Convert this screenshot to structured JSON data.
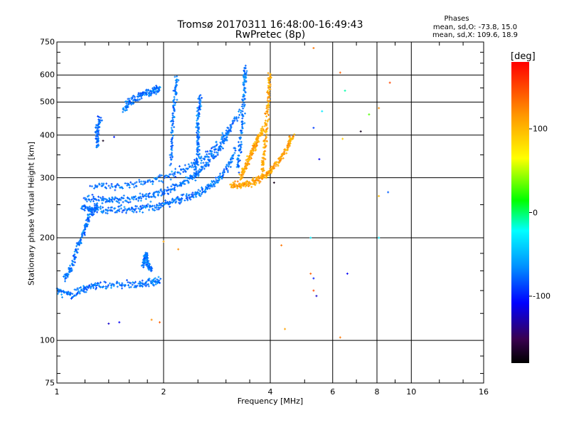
{
  "chart_data": {
    "type": "scatter",
    "title": "Tromsø 20170311 16:48:00-16:49:43",
    "subtitle": "RwPretec (8p)",
    "xlabel": "Frequency [MHz]",
    "ylabel": "Stationary phase Virtual Height [km]",
    "xscale": "log",
    "yscale": "log",
    "xlim": [
      1,
      16
    ],
    "ylim": [
      75,
      750
    ],
    "xticks": [
      1,
      2,
      4,
      6,
      8,
      10,
      16
    ],
    "xtick_labels": [
      "1",
      "2",
      "4",
      "6",
      "8",
      "10",
      "16"
    ],
    "yticks": [
      75,
      100,
      200,
      300,
      400,
      500,
      600,
      750
    ],
    "ytick_labels": [
      "75",
      "100",
      "200",
      "300",
      "400",
      "500",
      "600",
      "750"
    ],
    "minor_xticks": [
      1.2,
      1.4,
      1.6,
      1.8,
      2.5,
      3,
      3.5,
      5,
      7,
      9,
      12,
      14
    ],
    "minor_yticks": [
      80,
      90,
      120,
      140,
      160,
      180,
      250,
      350,
      450,
      550,
      650,
      700
    ],
    "grid": true,
    "colorbar": {
      "label": "[deg]",
      "range": [
        -180,
        180
      ],
      "ticks": [
        100,
        0,
        -100
      ],
      "tick_labels": [
        "100",
        "0",
        "-100"
      ],
      "colormap": "rainbow"
    },
    "annotations": {
      "phase_title": "Phases",
      "phase_o": "mean, sd,O: -73.8, 15.0",
      "phase_x": "mean, sd,X: 109.6, 18.9"
    },
    "series": [
      {
        "mode": "O",
        "phase_mean": -73.8,
        "phase_sd": 15.0,
        "traces": [
          {
            "x": [
              1.0,
              1.1,
              1.2,
              1.3,
              1.5,
              1.7,
              1.85,
              1.95
            ],
            "y": [
              140,
              136,
              142,
              145,
              145,
              146,
              148,
              149
            ]
          },
          {
            "x": [
              1.05,
              1.1,
              1.15,
              1.2,
              1.25,
              1.3
            ],
            "y": [
              150,
              165,
              190,
              215,
              235,
              250
            ]
          },
          {
            "x": [
              1.18,
              1.25,
              1.4,
              1.6,
              1.8,
              2.0,
              2.2,
              2.4,
              2.6,
              2.8,
              3.0,
              3.2
            ],
            "y": [
              246,
              242,
              240,
              242,
              245,
              250,
              258,
              265,
              275,
              290,
              315,
              360
            ]
          },
          {
            "x": [
              1.2,
              1.35,
              1.5,
              1.7,
              1.9,
              2.1,
              2.3,
              2.5,
              2.7,
              2.9,
              3.1
            ],
            "y": [
              262,
              258,
              258,
              262,
              268,
              278,
              292,
              310,
              335,
              370,
              420
            ]
          },
          {
            "x": [
              1.25,
              1.5,
              1.8,
              2.1,
              2.4,
              2.7,
              3.0,
              3.3
            ],
            "y": [
              285,
              282,
              290,
              305,
              325,
              355,
              400,
              470
            ]
          },
          {
            "x": [
              2.45,
              2.5,
              2.5,
              2.5,
              2.55
            ],
            "y": [
              300,
              350,
              400,
              460,
              520
            ]
          },
          {
            "x": [
              2.1,
              2.12,
              2.15,
              2.18
            ],
            "y": [
              330,
              420,
              510,
              590
            ]
          },
          {
            "x": [
              3.25,
              3.3,
              3.35,
              3.38,
              3.4
            ],
            "y": [
              320,
              380,
              460,
              560,
              640
            ]
          },
          {
            "x": [
              1.55,
              1.6,
              1.7,
              1.8,
              1.88,
              1.95
            ],
            "y": [
              470,
              500,
              520,
              530,
              540,
              550
            ]
          },
          {
            "x": [
              1.3,
              1.3,
              1.32
            ],
            "y": [
              370,
              410,
              450
            ]
          },
          {
            "x": [
              1.75,
              1.78,
              1.8,
              1.85
            ],
            "y": [
              165,
              180,
              170,
              160
            ]
          }
        ]
      },
      {
        "mode": "X",
        "phase_mean": 109.6,
        "phase_sd": 18.9,
        "traces": [
          {
            "x": [
              3.1,
              3.3,
              3.5,
              3.7,
              3.9,
              4.1,
              4.3,
              4.5,
              4.65
            ],
            "y": [
              285,
              285,
              290,
              296,
              305,
              320,
              345,
              375,
              400
            ]
          },
          {
            "x": [
              3.8,
              3.85,
              3.9,
              3.95,
              4.0
            ],
            "y": [
              310,
              360,
              430,
              520,
              610
            ]
          },
          {
            "x": [
              3.3,
              3.4,
              3.5,
              3.6,
              3.7,
              3.8
            ],
            "y": [
              300,
              320,
              345,
              370,
              390,
              420
            ]
          }
        ]
      }
    ],
    "outliers": [
      {
        "x": 5.3,
        "y": 720,
        "phase": 130
      },
      {
        "x": 6.3,
        "y": 610,
        "phase": 140
      },
      {
        "x": 8.7,
        "y": 570,
        "phase": 150
      },
      {
        "x": 5.3,
        "y": 420,
        "phase": -90
      },
      {
        "x": 6.5,
        "y": 540,
        "phase": -10
      },
      {
        "x": 7.2,
        "y": 410,
        "phase": -170
      },
      {
        "x": 7.6,
        "y": 460,
        "phase": 30
      },
      {
        "x": 5.5,
        "y": 340,
        "phase": -110
      },
      {
        "x": 6.4,
        "y": 390,
        "phase": 90
      },
      {
        "x": 8.1,
        "y": 480,
        "phase": 120
      },
      {
        "x": 8.1,
        "y": 265,
        "phase": 100
      },
      {
        "x": 8.6,
        "y": 272,
        "phase": -80
      },
      {
        "x": 4.3,
        "y": 190,
        "phase": 130
      },
      {
        "x": 5.2,
        "y": 200,
        "phase": -30
      },
      {
        "x": 5.2,
        "y": 157,
        "phase": 140
      },
      {
        "x": 5.3,
        "y": 152,
        "phase": -100
      },
      {
        "x": 6.6,
        "y": 157,
        "phase": -110
      },
      {
        "x": 5.3,
        "y": 140,
        "phase": 150
      },
      {
        "x": 5.4,
        "y": 135,
        "phase": -120
      },
      {
        "x": 4.4,
        "y": 108,
        "phase": 110
      },
      {
        "x": 6.3,
        "y": 102,
        "phase": 130
      },
      {
        "x": 8.1,
        "y": 200,
        "phase": -30
      },
      {
        "x": 1.85,
        "y": 115,
        "phase": 120
      },
      {
        "x": 1.95,
        "y": 113,
        "phase": 140
      },
      {
        "x": 1.4,
        "y": 112,
        "phase": -120
      },
      {
        "x": 1.5,
        "y": 113,
        "phase": -110
      },
      {
        "x": 2.0,
        "y": 195,
        "phase": 110
      },
      {
        "x": 2.2,
        "y": 185,
        "phase": 120
      },
      {
        "x": 1.35,
        "y": 385,
        "phase": -170
      },
      {
        "x": 1.45,
        "y": 395,
        "phase": -100
      },
      {
        "x": 4.1,
        "y": 290,
        "phase": -170
      },
      {
        "x": 5.6,
        "y": 470,
        "phase": -30
      }
    ]
  }
}
